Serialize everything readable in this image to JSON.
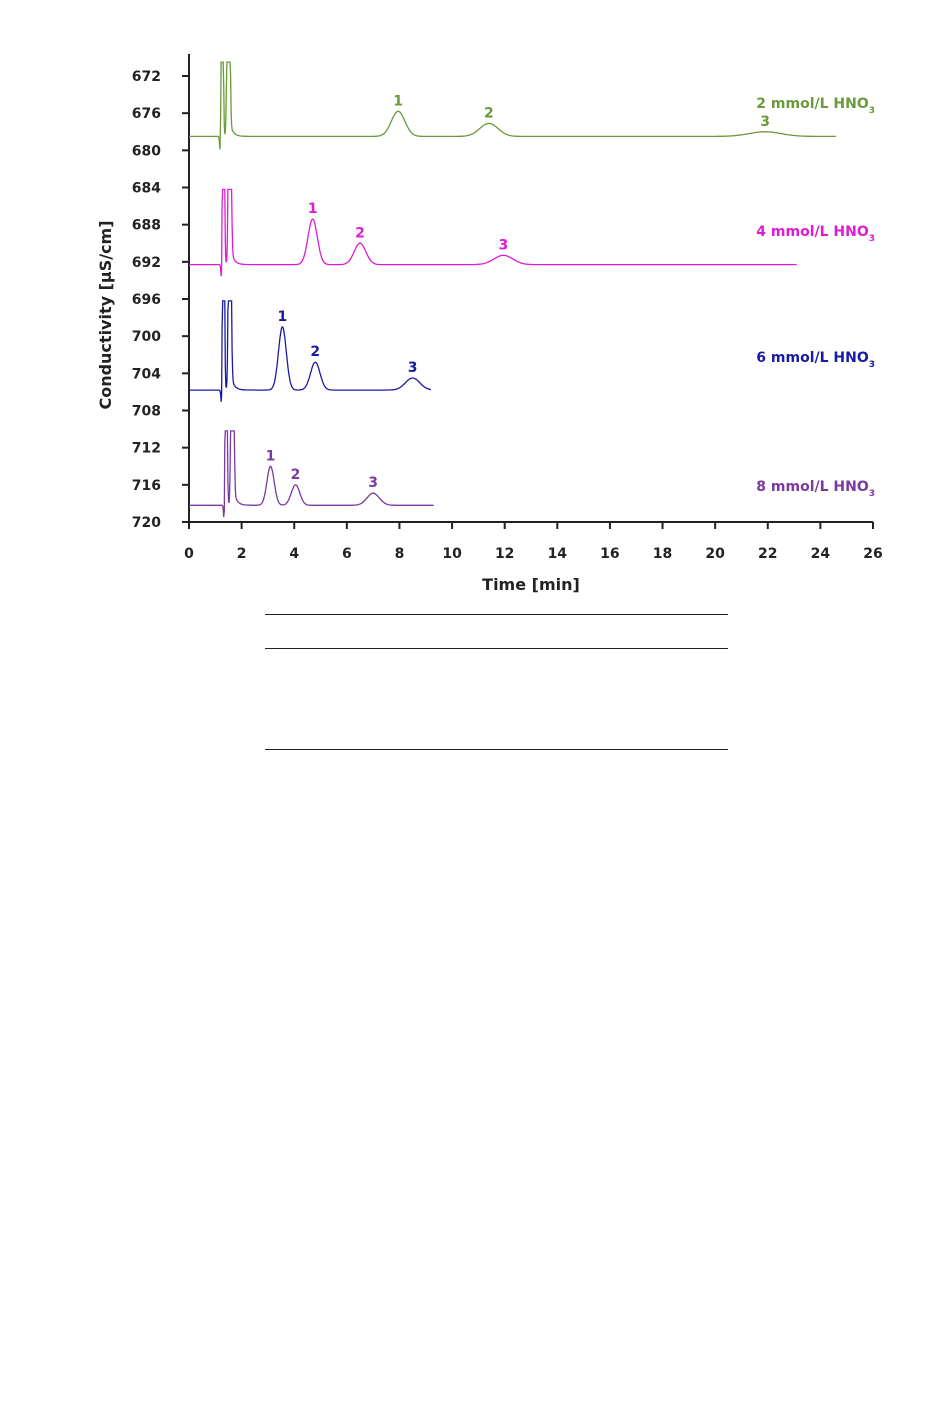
{
  "chart_data": {
    "type": "line",
    "xlabel": "Time [min]",
    "ylabel": "Conductivity [µS/cm]",
    "xlim": [
      0,
      26
    ],
    "ylim": [
      720,
      671
    ],
    "y_inverted": true,
    "grid": false,
    "x_ticks": [
      0,
      2,
      4,
      6,
      8,
      10,
      12,
      14,
      16,
      18,
      20,
      22,
      24,
      26
    ],
    "y_ticks": [
      672,
      676,
      680,
      684,
      688,
      692,
      696,
      700,
      704,
      708,
      712,
      716,
      720
    ],
    "series": [
      {
        "name": "2 mmol/L HNO3",
        "label_main": "2 mmol/L HNO",
        "label_sub": "3",
        "color": "#6a9a3a",
        "baseline": 678.5,
        "injection_time": 1.2,
        "end_time": 24.6,
        "peaks": [
          {
            "label": "1",
            "time": 7.95,
            "value": 675.8
          },
          {
            "label": "2",
            "time": 11.4,
            "value": 677.1
          },
          {
            "label": "3",
            "time": 21.9,
            "value": 678.0
          }
        ]
      },
      {
        "name": "4 mmol/L HNO3",
        "label_main": "4 mmol/L HNO",
        "label_sub": "3",
        "color": "#e01ad6",
        "baseline": 692.3,
        "injection_time": 1.25,
        "end_time": 23.1,
        "peaks": [
          {
            "label": "1",
            "time": 4.7,
            "value": 687.4
          },
          {
            "label": "2",
            "time": 6.5,
            "value": 690.0
          },
          {
            "label": "3",
            "time": 11.95,
            "value": 691.3
          }
        ]
      },
      {
        "name": "6 mmol/L HNO3",
        "label_main": "6 mmol/L HNO",
        "label_sub": "3",
        "color": "#1a1aa6",
        "baseline": 705.8,
        "injection_time": 1.25,
        "end_time": 9.2,
        "peaks": [
          {
            "label": "1",
            "time": 3.55,
            "value": 699.0
          },
          {
            "label": "2",
            "time": 4.8,
            "value": 702.8
          },
          {
            "label": "3",
            "time": 8.5,
            "value": 704.5
          }
        ]
      },
      {
        "name": "8 mmol/L HNO3",
        "label_main": "8 mmol/L HNO",
        "label_sub": "3",
        "color": "#7a3aa0",
        "baseline": 718.2,
        "injection_time": 1.35,
        "end_time": 9.3,
        "peaks": [
          {
            "label": "1",
            "time": 3.1,
            "value": 714.0
          },
          {
            "label": "2",
            "time": 4.05,
            "value": 716.0
          },
          {
            "label": "3",
            "time": 7.0,
            "value": 716.9
          }
        ]
      }
    ]
  }
}
